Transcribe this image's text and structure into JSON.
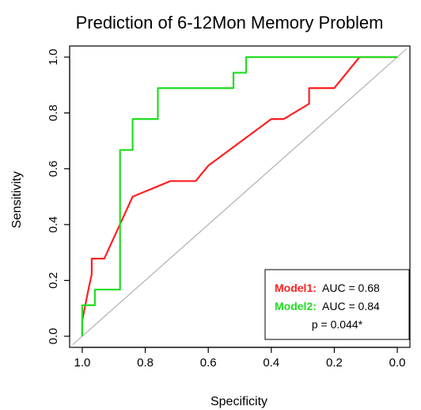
{
  "chart_data": {
    "type": "line",
    "title": "Prediction of 6-12Mon Memory Problem",
    "xlabel": "Specificity",
    "ylabel": "Sensitivity",
    "xlim": [
      1.0,
      0.0
    ],
    "ylim": [
      0.0,
      1.0
    ],
    "x_ticks": [
      "1.0",
      "0.8",
      "0.6",
      "0.4",
      "0.2",
      "0.0"
    ],
    "y_ticks": [
      "0.0",
      "0.2",
      "0.4",
      "0.6",
      "0.8",
      "1.0"
    ],
    "x_reversed": true,
    "grid": false,
    "reference_line": "diagonal",
    "legend_position": "bottom-right",
    "series": [
      {
        "name": "Model1",
        "color": "#ff2020",
        "points": [
          [
            1.0,
            0.0
          ],
          [
            1.0,
            0.056
          ],
          [
            0.98,
            0.17
          ],
          [
            0.97,
            0.222
          ],
          [
            0.97,
            0.278
          ],
          [
            0.93,
            0.278
          ],
          [
            0.84,
            0.5
          ],
          [
            0.72,
            0.556
          ],
          [
            0.64,
            0.556
          ],
          [
            0.6,
            0.611
          ],
          [
            0.4,
            0.778
          ],
          [
            0.36,
            0.778
          ],
          [
            0.28,
            0.833
          ],
          [
            0.28,
            0.889
          ],
          [
            0.2,
            0.889
          ],
          [
            0.12,
            1.0
          ],
          [
            0.0,
            1.0
          ]
        ]
      },
      {
        "name": "Model2",
        "color": "#22dd22",
        "points": [
          [
            1.0,
            0.0
          ],
          [
            1.0,
            0.111
          ],
          [
            0.96,
            0.111
          ],
          [
            0.96,
            0.167
          ],
          [
            0.88,
            0.167
          ],
          [
            0.88,
            0.667
          ],
          [
            0.84,
            0.667
          ],
          [
            0.84,
            0.778
          ],
          [
            0.76,
            0.778
          ],
          [
            0.76,
            0.889
          ],
          [
            0.52,
            0.889
          ],
          [
            0.52,
            0.944
          ],
          [
            0.48,
            0.944
          ],
          [
            0.48,
            1.0
          ],
          [
            0.0,
            1.0
          ]
        ]
      }
    ],
    "legend": {
      "entries": [
        {
          "name": "Model1:",
          "text": "AUC = 0.68",
          "color": "#ff2020"
        },
        {
          "name": "Model2:",
          "text": "AUC = 0.84",
          "color": "#22dd22"
        }
      ],
      "footer": "p = 0.044*"
    }
  }
}
